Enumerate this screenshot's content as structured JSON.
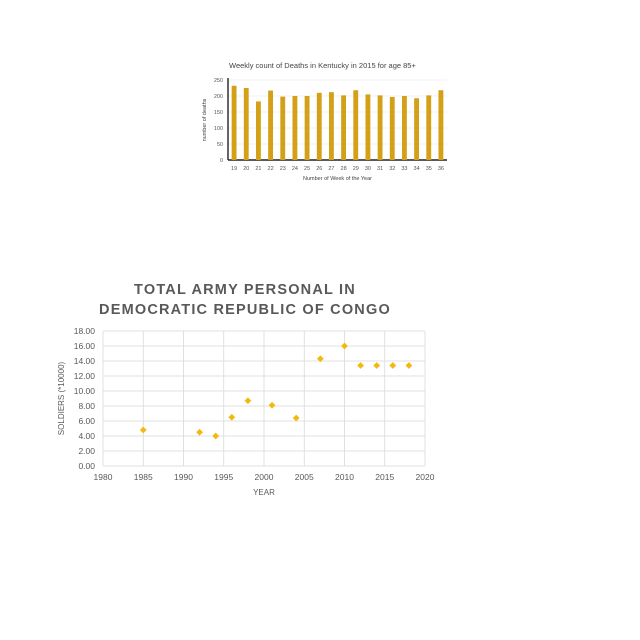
{
  "chart_data": [
    {
      "type": "bar",
      "title": "Weekly count of Deaths in Kentucky in 2015 for age 85+",
      "xlabel": "Number of Week of the Year",
      "ylabel": "number of deaths",
      "categories": [
        "19",
        "20",
        "21",
        "22",
        "23",
        "24",
        "25",
        "26",
        "27",
        "28",
        "29",
        "30",
        "31",
        "32",
        "33",
        "34",
        "35",
        "36"
      ],
      "values": [
        232,
        225,
        183,
        217,
        198,
        200,
        200,
        210,
        212,
        202,
        218,
        205,
        202,
        197,
        200,
        193,
        202,
        218
      ],
      "ylim": [
        0,
        250
      ],
      "yticks": [
        "0",
        "50",
        "100",
        "150",
        "200",
        "250"
      ],
      "grid": true,
      "bar_color": "#d4a017"
    },
    {
      "type": "scatter",
      "title": "TOTAL ARMY PERSONAL IN DEMOCRATIC REPUBLIC OF CONGO",
      "title_lines": [
        "TOTAL ARMY PERSONAL IN",
        "DEMOCRATIC REPUBLIC OF CONGO"
      ],
      "xlabel": "YEAR",
      "ylabel": "SOLDIERS (*10000)",
      "x": [
        1985,
        1992,
        1994,
        1996,
        1998,
        2001,
        2004,
        2007,
        2010,
        2012,
        2014,
        2016,
        2018
      ],
      "y": [
        4.8,
        4.5,
        4.0,
        6.5,
        8.7,
        8.1,
        6.4,
        14.3,
        16.0,
        13.4,
        13.4,
        13.4,
        13.4
      ],
      "xlim": [
        1980,
        2020
      ],
      "ylim": [
        0,
        18
      ],
      "xticks": [
        "1980",
        "1985",
        "1990",
        "1995",
        "2000",
        "2005",
        "2010",
        "2015",
        "2020"
      ],
      "yticks": [
        "0.00",
        "2.00",
        "4.00",
        "6.00",
        "8.00",
        "10.00",
        "12.00",
        "14.00",
        "16.00",
        "18.00"
      ],
      "grid": true,
      "marker_color": "#f2b90f"
    }
  ]
}
